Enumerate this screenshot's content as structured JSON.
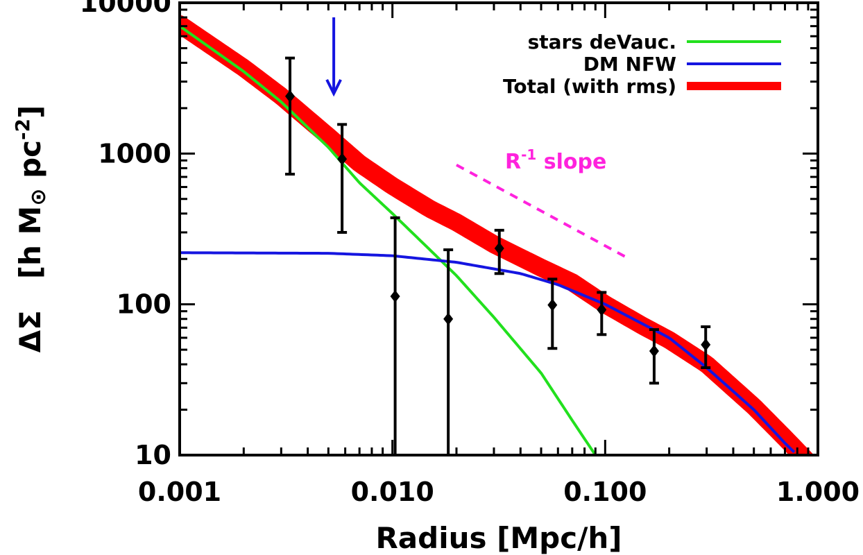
{
  "chart_data": {
    "type": "scatter",
    "x_scale": "log",
    "y_scale": "log",
    "xlim": [
      0.001,
      1.0
    ],
    "ylim": [
      10,
      10000
    ],
    "xlabel": "Radius [Mpc/h]",
    "ylabel": {
      "prefix": "ΔΣ",
      "bracket_open": "[h M",
      "sun_symbol": "⊙",
      "units": " pc",
      "exponent": "-2",
      "bracket_close": "]"
    },
    "x_tick_labels": [
      {
        "value": 0.001,
        "label": "0.001"
      },
      {
        "value": 0.01,
        "label": "0.010"
      },
      {
        "value": 0.1,
        "label": "0.100"
      },
      {
        "value": 1.0,
        "label": "1.000"
      }
    ],
    "y_tick_labels": [
      {
        "value": 10,
        "label": "10"
      },
      {
        "value": 100,
        "label": "100"
      },
      {
        "value": 1000,
        "label": "1000"
      },
      {
        "value": 10000,
        "label": "10000"
      }
    ],
    "legend_position": "top-right",
    "series": [
      {
        "name": "stars deVauc.",
        "kind": "line",
        "color": "#22e01e",
        "x": [
          0.001,
          0.002,
          0.003,
          0.005,
          0.007,
          0.01,
          0.015,
          0.02,
          0.03,
          0.05,
          0.07,
          0.09
        ],
        "y": [
          7000,
          3500,
          2200,
          1100,
          640,
          400,
          230,
          155,
          82,
          35,
          17,
          10
        ]
      },
      {
        "name": "DM NFW",
        "kind": "line",
        "color": "#1515e0",
        "x": [
          0.001,
          0.005,
          0.01,
          0.02,
          0.04,
          0.06,
          0.1,
          0.2,
          0.3,
          0.5,
          0.7,
          0.8
        ],
        "y": [
          220,
          218,
          210,
          190,
          160,
          135,
          100,
          60,
          38,
          20,
          12,
          10
        ]
      },
      {
        "name": "Total (with rms)",
        "kind": "band",
        "color": "#ff0000",
        "x": [
          0.001,
          0.002,
          0.003,
          0.005,
          0.007,
          0.01,
          0.015,
          0.02,
          0.03,
          0.05,
          0.07,
          0.1,
          0.15,
          0.2,
          0.3,
          0.5,
          0.7,
          0.9
        ],
        "y": [
          7200,
          3700,
          2400,
          1300,
          860,
          610,
          430,
          350,
          250,
          175,
          140,
          100,
          72,
          58,
          40,
          21,
          13,
          9
        ]
      },
      {
        "name": "data",
        "kind": "errorbar",
        "color": "#000000",
        "points": [
          {
            "x": 0.0033,
            "y": 2400,
            "ylo": 730,
            "yhi": 4300
          },
          {
            "x": 0.0058,
            "y": 920,
            "ylo": 300,
            "yhi": 1560
          },
          {
            "x": 0.0103,
            "y": 113,
            "ylo": 10,
            "yhi": 375
          },
          {
            "x": 0.0183,
            "y": 80,
            "ylo": 10,
            "yhi": 230
          },
          {
            "x": 0.0318,
            "y": 235,
            "ylo": 160,
            "yhi": 310
          },
          {
            "x": 0.0565,
            "y": 99,
            "ylo": 51,
            "yhi": 147
          },
          {
            "x": 0.0963,
            "y": 92,
            "ylo": 63,
            "yhi": 120
          },
          {
            "x": 0.1699,
            "y": 49,
            "ylo": 30,
            "yhi": 68
          },
          {
            "x": 0.2968,
            "y": 54,
            "ylo": 38,
            "yhi": 71
          }
        ]
      }
    ],
    "annotations": {
      "slope_text": {
        "R": "R",
        "sup": "-1",
        "rest": " slope",
        "color": "#ff22dd"
      },
      "slope_line": {
        "x": [
          0.02,
          0.13
        ],
        "y": [
          840,
          200
        ],
        "color": "#ff22dd"
      },
      "arrow": {
        "x": 0.0053,
        "y_from": 8000,
        "y_to": 2500,
        "color": "#1515e0"
      }
    }
  }
}
